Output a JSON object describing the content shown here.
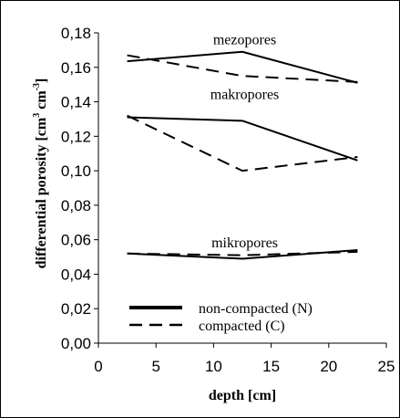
{
  "chart_data": {
    "type": "line",
    "xlabel": "depth [cm]",
    "ylabel": "differential porosity [cm",
    "ylabel_unit_a": "3",
    "ylabel_mid": " cm",
    "ylabel_unit_b": "-3",
    "ylabel_end": "]",
    "xlim": [
      0,
      25
    ],
    "ylim": [
      0,
      0.18
    ],
    "x_ticks": [
      0,
      5,
      10,
      15,
      20,
      25
    ],
    "x_tick_labels": [
      "0",
      "5",
      "10",
      "15",
      "20",
      "25"
    ],
    "y_ticks": [
      0,
      0.02,
      0.04,
      0.06,
      0.08,
      0.1,
      0.12,
      0.14,
      0.16,
      0.18
    ],
    "y_tick_labels": [
      "0,00",
      "0,02",
      "0,04",
      "0,06",
      "0,08",
      "0,10",
      "0,12",
      "0,14",
      "0,16",
      "0,18"
    ],
    "grid": false,
    "legend_placement": "bottom-left",
    "legend": [
      {
        "label": "non-compacted (N)",
        "style": "solid"
      },
      {
        "label": "compacted (C)",
        "style": "dashed"
      }
    ],
    "annotations": [
      {
        "text": "mezopores",
        "x": 12.7,
        "y": 0.1735
      },
      {
        "text": "makropores",
        "x": 12.7,
        "y": 0.1415
      },
      {
        "text": "mikropores",
        "x": 12.7,
        "y": 0.0555
      }
    ],
    "series": [
      {
        "group": "mezopores",
        "style": "solid",
        "x": [
          2.5,
          12.5,
          22.5
        ],
        "values": [
          0.1635,
          0.169,
          0.151
        ]
      },
      {
        "group": "mezopores",
        "style": "dashed",
        "x": [
          2.5,
          12.5,
          22.5
        ],
        "values": [
          0.167,
          0.155,
          0.1515
        ]
      },
      {
        "group": "makropores",
        "style": "solid",
        "x": [
          2.5,
          12.5,
          22.5
        ],
        "values": [
          0.131,
          0.129,
          0.106
        ]
      },
      {
        "group": "makropores",
        "style": "dashed",
        "x": [
          2.5,
          12.5,
          22.5
        ],
        "values": [
          0.132,
          0.1,
          0.108
        ]
      },
      {
        "group": "mikropores",
        "style": "solid",
        "x": [
          2.5,
          12.5,
          22.5
        ],
        "values": [
          0.052,
          0.049,
          0.054
        ]
      },
      {
        "group": "mikropores",
        "style": "dashed",
        "x": [
          2.5,
          12.5,
          22.5
        ],
        "values": [
          0.052,
          0.051,
          0.053
        ]
      }
    ],
    "colors": {
      "line": "#000000",
      "background": "#ffffff"
    }
  }
}
